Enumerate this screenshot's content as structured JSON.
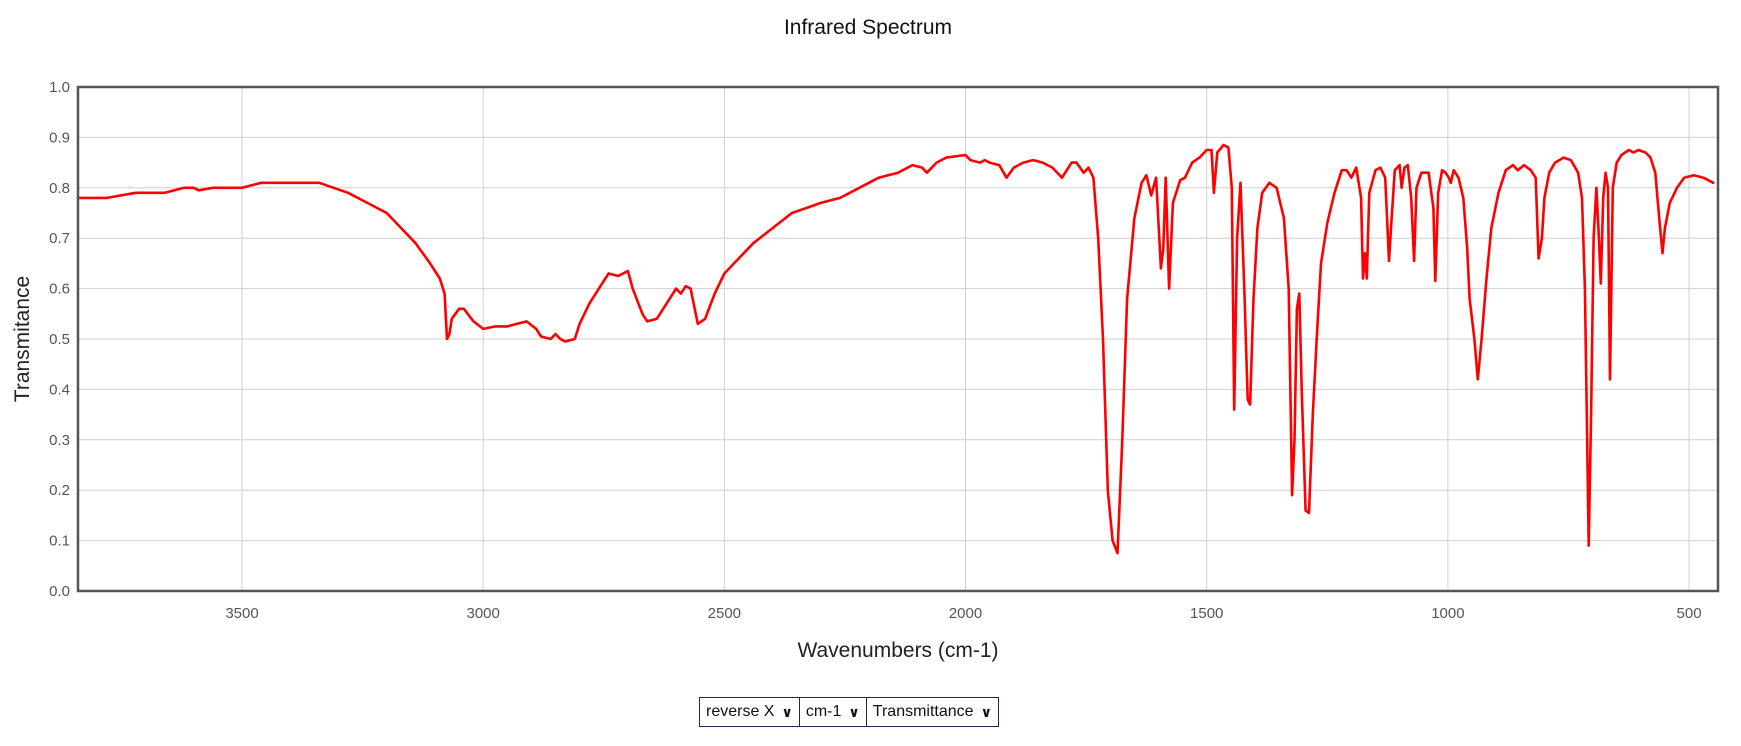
{
  "chart_data": {
    "type": "line",
    "title": "Infrared Spectrum",
    "xlabel": "Wavenumbers (cm-1)",
    "ylabel": "Transmitance",
    "x_reversed": true,
    "xlim": [
      3840,
      440
    ],
    "ylim": [
      0.0,
      1.0
    ],
    "grid": true,
    "x_ticks": [
      3500,
      3000,
      2500,
      2000,
      1500,
      1000,
      500
    ],
    "y_ticks": [
      0.0,
      0.1,
      0.2,
      0.3,
      0.4,
      0.5,
      0.6,
      0.7,
      0.8,
      0.9,
      1.0
    ],
    "x_tick_labels": [
      "3500",
      "3000",
      "2500",
      "2000",
      "1500",
      "1000",
      "500"
    ],
    "y_tick_labels": [
      "0.0",
      "0.1",
      "0.2",
      "0.3",
      "0.4",
      "0.5",
      "0.6",
      "0.7",
      "0.8",
      "0.9",
      "1.0"
    ],
    "series": [
      {
        "color": "#ff0000",
        "points": [
          [
            3840,
            0.78
          ],
          [
            3780,
            0.78
          ],
          [
            3720,
            0.79
          ],
          [
            3660,
            0.79
          ],
          [
            3620,
            0.8
          ],
          [
            3600,
            0.8
          ],
          [
            3590,
            0.795
          ],
          [
            3560,
            0.8
          ],
          [
            3500,
            0.8
          ],
          [
            3460,
            0.81
          ],
          [
            3400,
            0.81
          ],
          [
            3340,
            0.81
          ],
          [
            3310,
            0.8
          ],
          [
            3280,
            0.79
          ],
          [
            3240,
            0.77
          ],
          [
            3200,
            0.75
          ],
          [
            3170,
            0.72
          ],
          [
            3140,
            0.69
          ],
          [
            3110,
            0.65
          ],
          [
            3090,
            0.62
          ],
          [
            3080,
            0.59
          ],
          [
            3075,
            0.5
          ],
          [
            3070,
            0.51
          ],
          [
            3065,
            0.54
          ],
          [
            3050,
            0.56
          ],
          [
            3040,
            0.56
          ],
          [
            3020,
            0.535
          ],
          [
            3000,
            0.52
          ],
          [
            2975,
            0.525
          ],
          [
            2950,
            0.525
          ],
          [
            2930,
            0.53
          ],
          [
            2910,
            0.535
          ],
          [
            2890,
            0.52
          ],
          [
            2880,
            0.505
          ],
          [
            2860,
            0.5
          ],
          [
            2850,
            0.51
          ],
          [
            2840,
            0.5
          ],
          [
            2830,
            0.495
          ],
          [
            2810,
            0.5
          ],
          [
            2800,
            0.53
          ],
          [
            2780,
            0.57
          ],
          [
            2760,
            0.6
          ],
          [
            2740,
            0.63
          ],
          [
            2720,
            0.625
          ],
          [
            2700,
            0.635
          ],
          [
            2690,
            0.6
          ],
          [
            2670,
            0.55
          ],
          [
            2660,
            0.535
          ],
          [
            2640,
            0.54
          ],
          [
            2620,
            0.57
          ],
          [
            2600,
            0.6
          ],
          [
            2590,
            0.59
          ],
          [
            2580,
            0.605
          ],
          [
            2570,
            0.6
          ],
          [
            2555,
            0.53
          ],
          [
            2540,
            0.54
          ],
          [
            2520,
            0.59
          ],
          [
            2500,
            0.63
          ],
          [
            2470,
            0.66
          ],
          [
            2440,
            0.69
          ],
          [
            2400,
            0.72
          ],
          [
            2360,
            0.75
          ],
          [
            2330,
            0.76
          ],
          [
            2300,
            0.77
          ],
          [
            2260,
            0.78
          ],
          [
            2220,
            0.8
          ],
          [
            2180,
            0.82
          ],
          [
            2140,
            0.83
          ],
          [
            2110,
            0.845
          ],
          [
            2090,
            0.84
          ],
          [
            2080,
            0.83
          ],
          [
            2060,
            0.85
          ],
          [
            2040,
            0.86
          ],
          [
            2000,
            0.865
          ],
          [
            1990,
            0.855
          ],
          [
            1970,
            0.85
          ],
          [
            1960,
            0.855
          ],
          [
            1950,
            0.85
          ],
          [
            1930,
            0.845
          ],
          [
            1915,
            0.82
          ],
          [
            1900,
            0.84
          ],
          [
            1880,
            0.85
          ],
          [
            1860,
            0.855
          ],
          [
            1840,
            0.85
          ],
          [
            1830,
            0.845
          ],
          [
            1820,
            0.84
          ],
          [
            1800,
            0.82
          ],
          [
            1780,
            0.85
          ],
          [
            1770,
            0.85
          ],
          [
            1755,
            0.83
          ],
          [
            1745,
            0.84
          ],
          [
            1735,
            0.82
          ],
          [
            1725,
            0.7
          ],
          [
            1715,
            0.5
          ],
          [
            1705,
            0.2
          ],
          [
            1695,
            0.1
          ],
          [
            1685,
            0.075
          ],
          [
            1675,
            0.3
          ],
          [
            1665,
            0.58
          ],
          [
            1650,
            0.74
          ],
          [
            1635,
            0.81
          ],
          [
            1625,
            0.825
          ],
          [
            1615,
            0.785
          ],
          [
            1605,
            0.82
          ],
          [
            1595,
            0.64
          ],
          [
            1590,
            0.68
          ],
          [
            1585,
            0.82
          ],
          [
            1578,
            0.6
          ],
          [
            1570,
            0.77
          ],
          [
            1555,
            0.815
          ],
          [
            1545,
            0.82
          ],
          [
            1530,
            0.85
          ],
          [
            1515,
            0.86
          ],
          [
            1500,
            0.875
          ],
          [
            1490,
            0.875
          ],
          [
            1485,
            0.79
          ],
          [
            1478,
            0.87
          ],
          [
            1465,
            0.885
          ],
          [
            1455,
            0.88
          ],
          [
            1448,
            0.8
          ],
          [
            1443,
            0.36
          ],
          [
            1437,
            0.7
          ],
          [
            1430,
            0.81
          ],
          [
            1422,
            0.6
          ],
          [
            1415,
            0.38
          ],
          [
            1410,
            0.37
          ],
          [
            1403,
            0.58
          ],
          [
            1395,
            0.72
          ],
          [
            1385,
            0.79
          ],
          [
            1370,
            0.81
          ],
          [
            1355,
            0.8
          ],
          [
            1340,
            0.74
          ],
          [
            1330,
            0.6
          ],
          [
            1323,
            0.19
          ],
          [
            1318,
            0.3
          ],
          [
            1313,
            0.56
          ],
          [
            1308,
            0.59
          ],
          [
            1303,
            0.4
          ],
          [
            1295,
            0.16
          ],
          [
            1288,
            0.155
          ],
          [
            1280,
            0.35
          ],
          [
            1272,
            0.5
          ],
          [
            1263,
            0.65
          ],
          [
            1250,
            0.73
          ],
          [
            1235,
            0.79
          ],
          [
            1220,
            0.835
          ],
          [
            1210,
            0.835
          ],
          [
            1200,
            0.82
          ],
          [
            1190,
            0.84
          ],
          [
            1180,
            0.78
          ],
          [
            1176,
            0.62
          ],
          [
            1172,
            0.67
          ],
          [
            1168,
            0.62
          ],
          [
            1163,
            0.79
          ],
          [
            1150,
            0.835
          ],
          [
            1140,
            0.84
          ],
          [
            1130,
            0.82
          ],
          [
            1122,
            0.655
          ],
          [
            1118,
            0.72
          ],
          [
            1110,
            0.835
          ],
          [
            1100,
            0.845
          ],
          [
            1096,
            0.8
          ],
          [
            1090,
            0.84
          ],
          [
            1083,
            0.845
          ],
          [
            1076,
            0.78
          ],
          [
            1070,
            0.655
          ],
          [
            1065,
            0.8
          ],
          [
            1055,
            0.83
          ],
          [
            1040,
            0.83
          ],
          [
            1030,
            0.76
          ],
          [
            1026,
            0.615
          ],
          [
            1020,
            0.79
          ],
          [
            1012,
            0.835
          ],
          [
            1005,
            0.83
          ],
          [
            998,
            0.82
          ],
          [
            994,
            0.81
          ],
          [
            988,
            0.835
          ],
          [
            978,
            0.82
          ],
          [
            968,
            0.78
          ],
          [
            960,
            0.68
          ],
          [
            955,
            0.58
          ],
          [
            945,
            0.5
          ],
          [
            938,
            0.42
          ],
          [
            930,
            0.5
          ],
          [
            920,
            0.62
          ],
          [
            910,
            0.72
          ],
          [
            895,
            0.79
          ],
          [
            880,
            0.835
          ],
          [
            865,
            0.845
          ],
          [
            855,
            0.835
          ],
          [
            842,
            0.845
          ],
          [
            828,
            0.835
          ],
          [
            818,
            0.82
          ],
          [
            812,
            0.66
          ],
          [
            805,
            0.7
          ],
          [
            800,
            0.78
          ],
          [
            790,
            0.83
          ],
          [
            778,
            0.85
          ],
          [
            760,
            0.86
          ],
          [
            745,
            0.855
          ],
          [
            730,
            0.83
          ],
          [
            722,
            0.78
          ],
          [
            716,
            0.6
          ],
          [
            712,
            0.35
          ],
          [
            708,
            0.09
          ],
          [
            703,
            0.35
          ],
          [
            698,
            0.7
          ],
          [
            692,
            0.8
          ],
          [
            687,
            0.7
          ],
          [
            683,
            0.61
          ],
          [
            678,
            0.78
          ],
          [
            673,
            0.83
          ],
          [
            668,
            0.8
          ],
          [
            664,
            0.42
          ],
          [
            658,
            0.8
          ],
          [
            650,
            0.85
          ],
          [
            640,
            0.865
          ],
          [
            625,
            0.875
          ],
          [
            615,
            0.87
          ],
          [
            605,
            0.875
          ],
          [
            590,
            0.87
          ],
          [
            580,
            0.86
          ],
          [
            570,
            0.83
          ],
          [
            562,
            0.74
          ],
          [
            555,
            0.67
          ],
          [
            550,
            0.72
          ],
          [
            540,
            0.77
          ],
          [
            525,
            0.8
          ],
          [
            510,
            0.82
          ],
          [
            490,
            0.825
          ],
          [
            470,
            0.82
          ],
          [
            450,
            0.81
          ]
        ]
      }
    ]
  },
  "controls": {
    "x_direction": "reverse X",
    "x_units": "cm-1",
    "y_mode": "Transmittance"
  }
}
